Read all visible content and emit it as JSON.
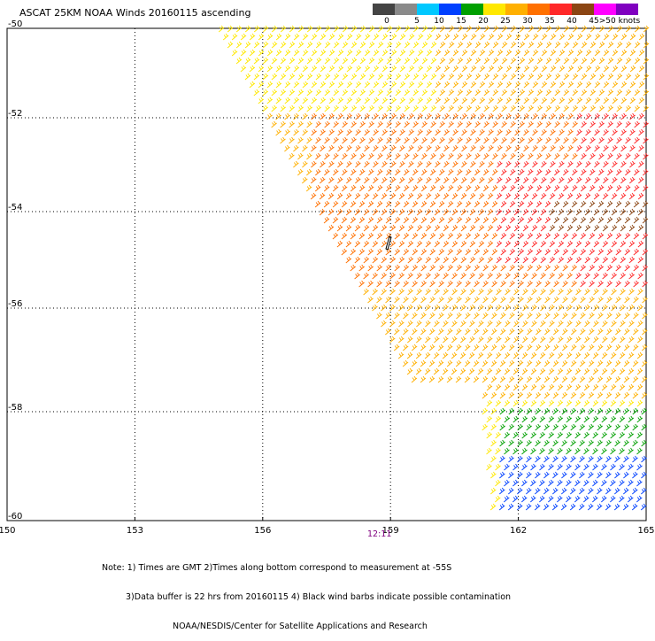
{
  "title": "ASCAT 25KM NOAA Winds 20160115 ascending",
  "colorbar": {
    "labels": [
      "0",
      "5",
      "10",
      "15",
      "20",
      "25",
      "30",
      "35",
      "40",
      "45",
      ">50 knots"
    ],
    "colors": [
      "#444444",
      "#8a8a8a",
      "#00c8ff",
      "#0040ff",
      "#00a000",
      "#ffe800",
      "#ffb000",
      "#ff7000",
      "#ff2828",
      "#8b4513",
      "#ff00ff",
      "#8000c0"
    ]
  },
  "axes": {
    "x_ticks": [
      "150",
      "153",
      "156",
      "159",
      "162",
      "165"
    ],
    "y_ticks": [
      "-50",
      "-52",
      "-54",
      "-56",
      "-58",
      "-60"
    ],
    "x_values": [
      150,
      153,
      156,
      159,
      162,
      165
    ],
    "y_values": [
      -50,
      -52,
      -54,
      -56,
      -58,
      -60
    ]
  },
  "time_label": "12:11",
  "notes": [
    "Note: 1) Times are GMT 2)Times along bottom correspond to measurement at -55S",
    "3)Data buffer is 22 hrs from 20160115 4) Black wind barbs indicate possible contamination",
    "NOAA/NESDIS/Center for Satellite Applications and Research"
  ]
}
